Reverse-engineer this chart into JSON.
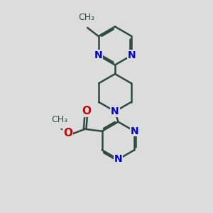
{
  "bg_color": "#dcdcdc",
  "bond_color": "#2d4a3e",
  "nitrogen_color": "#0000cc",
  "oxygen_color": "#cc0000",
  "bond_width": 1.8,
  "font_size": 10,
  "fig_width": 3.0,
  "fig_height": 3.0,
  "dpi": 100,
  "xlim": [
    0,
    10
  ],
  "ylim": [
    0,
    10
  ]
}
